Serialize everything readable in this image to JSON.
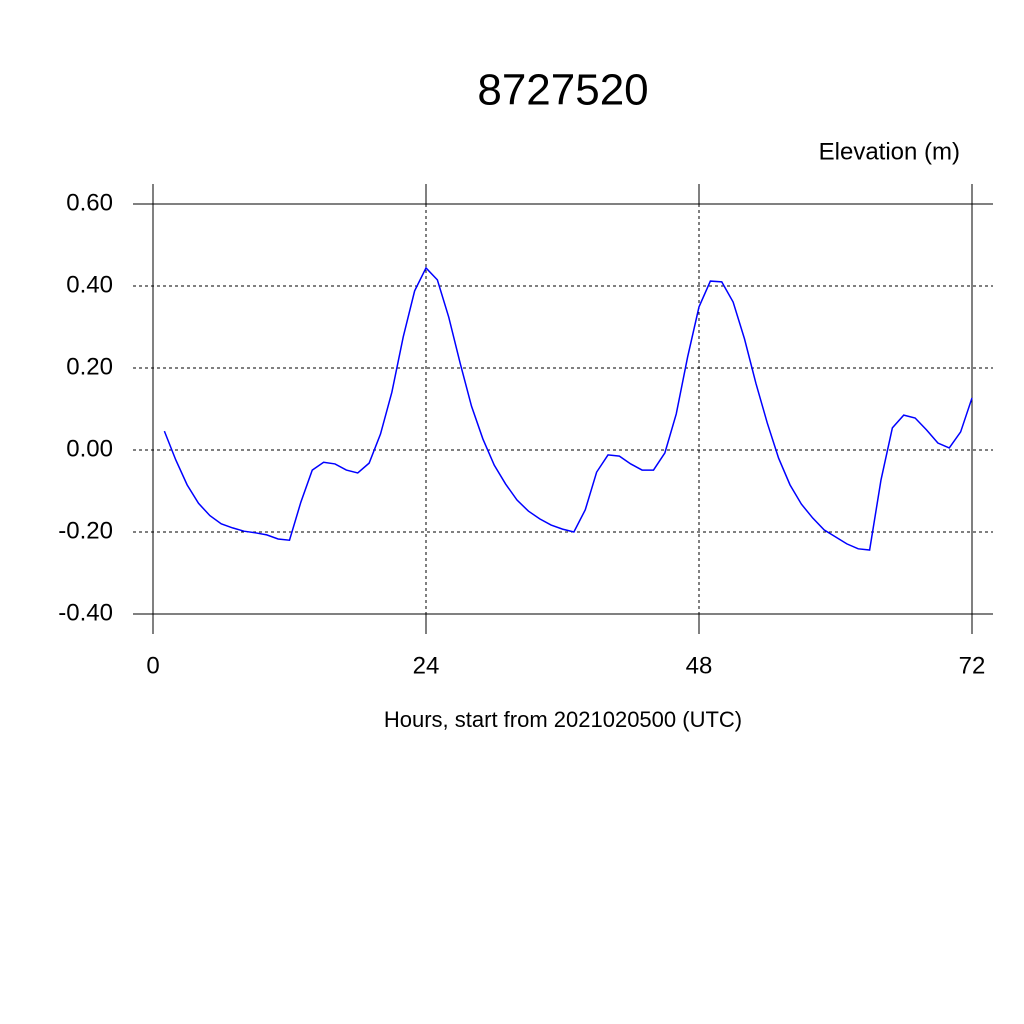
{
  "chart_data": {
    "type": "line",
    "title": "8727520",
    "y_label": "Elevation (m)",
    "x_label": "Hours, start from 2021020500 (UTC)",
    "x": [
      1,
      2,
      3,
      4,
      5,
      6,
      7,
      8,
      9,
      10,
      11,
      12,
      13,
      14,
      15,
      16,
      17,
      18,
      19,
      20,
      21,
      22,
      23,
      24,
      25,
      26,
      27,
      28,
      29,
      30,
      31,
      32,
      33,
      34,
      35,
      36,
      37,
      38,
      39,
      40,
      41,
      42,
      43,
      44,
      45,
      46,
      47,
      48,
      49,
      50,
      51,
      52,
      53,
      54,
      55,
      56,
      57,
      58,
      59,
      60,
      61,
      62,
      63,
      64,
      65,
      66,
      67,
      68,
      69,
      70,
      71,
      72
    ],
    "series": [
      {
        "color": "#0000ff",
        "values": [
          0.046,
          -0.024,
          -0.085,
          -0.13,
          -0.16,
          -0.18,
          -0.19,
          -0.198,
          -0.202,
          -0.207,
          -0.217,
          -0.22,
          -0.127,
          -0.049,
          -0.03,
          -0.034,
          -0.049,
          -0.056,
          -0.032,
          0.039,
          0.141,
          0.276,
          0.388,
          0.444,
          0.415,
          0.324,
          0.212,
          0.107,
          0.027,
          -0.037,
          -0.083,
          -0.122,
          -0.149,
          -0.168,
          -0.183,
          -0.193,
          -0.2,
          -0.146,
          -0.054,
          -0.012,
          -0.015,
          -0.034,
          -0.049,
          -0.049,
          -0.007,
          0.088,
          0.227,
          0.349,
          0.412,
          0.41,
          0.361,
          0.271,
          0.163,
          0.066,
          -0.02,
          -0.085,
          -0.132,
          -0.166,
          -0.195,
          -0.212,
          -0.229,
          -0.241,
          -0.244,
          -0.073,
          0.054,
          0.085,
          0.078,
          0.049,
          0.017,
          0.005,
          0.044,
          0.127
        ]
      }
    ],
    "xlim": [
      0,
      72
    ],
    "xticks": [
      0,
      24,
      48,
      72
    ],
    "ylim": [
      -0.4,
      0.6
    ],
    "yticks": [
      {
        "value": 0.6,
        "label": "0.60"
      },
      {
        "value": 0.4,
        "label": "0.40"
      },
      {
        "value": 0.2,
        "label": "0.20"
      },
      {
        "value": 0,
        "label": "0.00"
      },
      {
        "value": -0.2,
        "label": "-0.20"
      },
      {
        "value": -0.4,
        "label": "-0.40"
      }
    ],
    "grid": true
  }
}
